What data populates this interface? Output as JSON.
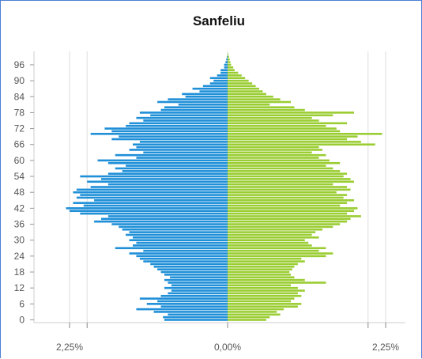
{
  "chart_data": {
    "type": "bar",
    "orientation": "horizontal-population-pyramid",
    "title": "Sanfeliu",
    "y_tick_labels": [
      "0",
      "6",
      "12",
      "18",
      "24",
      "30",
      "36",
      "42",
      "48",
      "54",
      "60",
      "66",
      "72",
      "78",
      "84",
      "90",
      "96"
    ],
    "x_tick_labels": [
      "2,25%",
      "0,00%",
      "2,25%"
    ],
    "xlim": [
      -2.25,
      2.25
    ],
    "grid": true,
    "ages": [
      0,
      1,
      2,
      3,
      4,
      5,
      6,
      7,
      8,
      9,
      10,
      11,
      12,
      13,
      14,
      15,
      16,
      17,
      18,
      19,
      20,
      21,
      22,
      23,
      24,
      25,
      26,
      27,
      28,
      29,
      30,
      31,
      32,
      33,
      34,
      35,
      36,
      37,
      38,
      39,
      40,
      41,
      42,
      43,
      44,
      45,
      46,
      47,
      48,
      49,
      50,
      51,
      52,
      53,
      54,
      55,
      56,
      57,
      58,
      59,
      60,
      61,
      62,
      63,
      64,
      65,
      66,
      67,
      68,
      69,
      70,
      71,
      72,
      73,
      74,
      75,
      76,
      77,
      78,
      79,
      80,
      81,
      82,
      83,
      84,
      85,
      86,
      87,
      88,
      89,
      90,
      91,
      92,
      93,
      94,
      95,
      96,
      97,
      98,
      99,
      100
    ],
    "series": [
      {
        "side": "left",
        "color": "#1f8fd8",
        "values": [
          0.9,
          0.92,
          0.85,
          1.05,
          1.3,
          0.95,
          1.15,
          1.0,
          1.25,
          0.95,
          0.85,
          0.8,
          0.9,
          0.8,
          0.85,
          0.9,
          0.82,
          0.9,
          0.95,
          1.0,
          1.05,
          1.1,
          1.2,
          1.25,
          1.3,
          1.4,
          1.2,
          1.6,
          1.35,
          1.3,
          1.4,
          1.35,
          1.45,
          1.4,
          1.5,
          1.55,
          1.65,
          1.9,
          1.8,
          1.7,
          2.1,
          2.25,
          2.3,
          2.05,
          2.2,
          1.9,
          2.15,
          2.1,
          2.2,
          2.15,
          1.95,
          1.7,
          2.0,
          1.8,
          2.1,
          1.7,
          1.5,
          1.6,
          1.45,
          1.7,
          1.85,
          1.3,
          1.6,
          1.2,
          1.4,
          1.3,
          1.35,
          1.25,
          1.65,
          1.55,
          1.95,
          1.65,
          1.75,
          1.45,
          1.4,
          1.2,
          1.3,
          1.1,
          1.25,
          0.95,
          0.9,
          0.7,
          1.0,
          0.85,
          0.6,
          0.65,
          0.4,
          0.5,
          0.35,
          0.25,
          0.2,
          0.25,
          0.15,
          0.1,
          0.1,
          0.05,
          0.05,
          0.03,
          0.02,
          0.01,
          0.0
        ]
      },
      {
        "side": "right",
        "color": "#9acd32",
        "values": [
          0.55,
          0.6,
          0.75,
          0.7,
          0.8,
          1.0,
          1.05,
          0.9,
          0.95,
          1.05,
          1.0,
          1.1,
          1.0,
          0.9,
          1.4,
          1.1,
          0.95,
          0.9,
          0.88,
          0.92,
          0.95,
          1.0,
          1.1,
          1.05,
          1.4,
          1.5,
          1.3,
          1.4,
          1.2,
          1.15,
          1.1,
          1.3,
          1.2,
          1.25,
          1.35,
          1.5,
          1.6,
          1.7,
          1.75,
          1.9,
          1.7,
          1.8,
          1.85,
          1.6,
          1.7,
          1.8,
          1.65,
          1.7,
          1.55,
          1.75,
          1.7,
          1.5,
          1.8,
          1.75,
          1.65,
          1.7,
          1.6,
          1.5,
          1.4,
          1.6,
          1.45,
          1.3,
          1.4,
          1.2,
          1.35,
          1.3,
          2.1,
          1.9,
          1.7,
          1.85,
          2.2,
          1.6,
          1.55,
          1.4,
          1.7,
          1.3,
          1.2,
          1.5,
          1.8,
          1.1,
          0.95,
          0.6,
          0.9,
          0.75,
          0.65,
          0.55,
          0.5,
          0.45,
          0.4,
          0.35,
          0.3,
          0.25,
          0.2,
          0.15,
          0.1,
          0.08,
          0.05,
          0.04,
          0.03,
          0.02,
          0.01
        ]
      }
    ]
  }
}
